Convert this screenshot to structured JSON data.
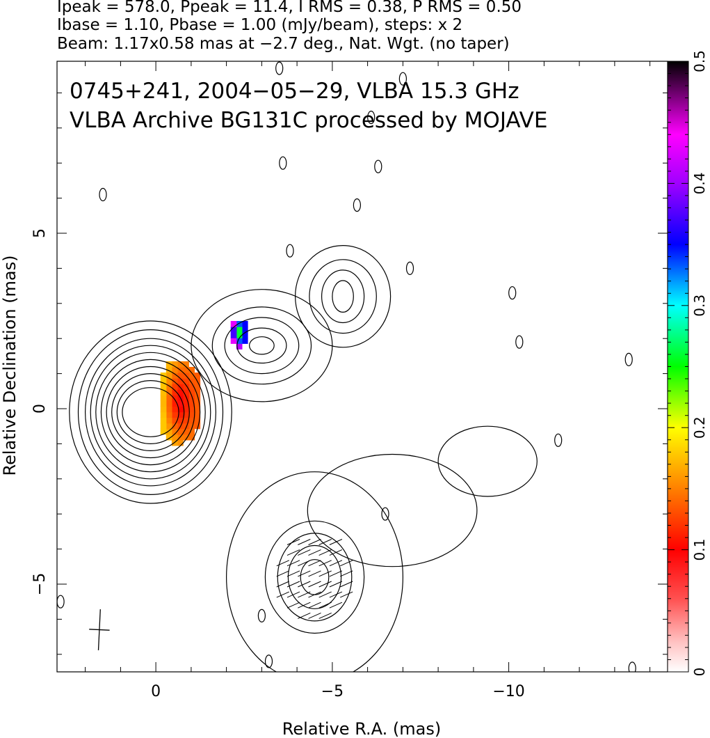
{
  "header": {
    "line1": "Ipeak = 578.0, Ppeak = 11.4, I RMS = 0.38, P RMS = 0.50",
    "line2": "Ibase = 1.10, Pbase = 1.00 (mJy/beam), steps: x 2",
    "line3": "Beam: 1.17x0.58 mas at −2.7 deg., Nat. Wgt. (no taper)"
  },
  "plot": {
    "title_line1": "0745+241, 2004−05−29, VLBA 15.3 GHz",
    "title_line2": "VLBA Archive BG131C processed by MOJAVE"
  },
  "chart_data": {
    "type": "contour",
    "xlabel": "Relative R.A. (mas)",
    "ylabel": "Relative Declination (mas)",
    "xlim": [
      2.8,
      -14.5
    ],
    "ylim": [
      -7.5,
      9.9
    ],
    "x_ticks": [
      0,
      -5,
      -10
    ],
    "x_tick_labels": [
      "0",
      "−5",
      "−10"
    ],
    "y_ticks": [
      -5,
      0,
      5
    ],
    "y_tick_labels": [
      "−5",
      "0",
      "5"
    ],
    "colorbar": {
      "range": [
        0,
        0.5
      ],
      "ticks": [
        0,
        0.1,
        0.2,
        0.3,
        0.4,
        0.5
      ],
      "tick_labels": [
        "0",
        "0.1",
        "0.2",
        "0.3",
        "0.4",
        "0.5"
      ],
      "colors": [
        "#ffffff",
        "#ff8080",
        "#ff0000",
        "#ff8000",
        "#ffff00",
        "#00ff00",
        "#00ffff",
        "#0000ff",
        "#ff00ff",
        "#000000"
      ]
    },
    "beam": {
      "major_mas": 1.17,
      "minor_mas": 0.58,
      "pa_deg": -2.7,
      "center": [
        1.6,
        -6.3
      ]
    },
    "contours": [
      {
        "name": "core",
        "center": [
          0.15,
          -0.1
        ],
        "rx": [
          0.8,
          0.95,
          1.1,
          1.25,
          1.4,
          1.55,
          1.7,
          1.85,
          2.05,
          2.3
        ],
        "ry": [
          0.7,
          0.9,
          1.1,
          1.3,
          1.5,
          1.7,
          1.9,
          2.1,
          2.35,
          2.6
        ]
      },
      {
        "name": "knot1",
        "center": [
          -3.0,
          1.8
        ],
        "rx": [
          0.35,
          0.7,
          1.05,
          1.4,
          2.0
        ],
        "ry": [
          0.25,
          0.5,
          0.8,
          1.1,
          1.6
        ]
      },
      {
        "name": "knot2",
        "center": [
          -5.3,
          3.2
        ],
        "rx": [
          0.3,
          0.6,
          0.95,
          1.35
        ],
        "ry": [
          0.45,
          0.75,
          1.05,
          1.45
        ]
      },
      {
        "name": "south-knot",
        "center": [
          -4.5,
          -4.8
        ],
        "rx": [
          0.4,
          0.75,
          1.05,
          1.4,
          2.5
        ],
        "ry": [
          0.5,
          0.9,
          1.25,
          1.6,
          3.0
        ]
      },
      {
        "name": "south-extension",
        "center": [
          -6.7,
          -2.9
        ],
        "rx": [
          2.4
        ],
        "ry": [
          1.6
        ]
      },
      {
        "name": "far-knot",
        "center": [
          -9.4,
          -1.5
        ],
        "rx": [
          1.4
        ],
        "ry": [
          1.0
        ]
      }
    ],
    "noise_contours": [
      [
        -3.5,
        9.7
      ],
      [
        -7.0,
        9.4
      ],
      [
        -6.1,
        8.3
      ],
      [
        -3.6,
        7.0
      ],
      [
        -6.3,
        6.9
      ],
      [
        1.5,
        6.1
      ],
      [
        -5.7,
        5.8
      ],
      [
        -3.8,
        4.5
      ],
      [
        -7.2,
        4.0
      ],
      [
        -10.1,
        3.3
      ],
      [
        -10.3,
        1.9
      ],
      [
        -13.4,
        1.4
      ],
      [
        -11.4,
        -0.9
      ],
      [
        -6.5,
        -3.0
      ],
      [
        -3.0,
        -5.9
      ],
      [
        2.7,
        -5.5
      ],
      [
        -3.2,
        -7.2
      ],
      [
        -13.5,
        -7.4
      ]
    ],
    "pol_regions": [
      {
        "name": "core-polarization",
        "x_range": [
          -1.25,
          -0.25
        ],
        "y_range": [
          -1.05,
          1.3
        ],
        "level_range": [
          0.09,
          0.18
        ]
      },
      {
        "name": "knot1-polarization",
        "x_range": [
          -2.6,
          -2.2
        ],
        "y_range": [
          1.7,
          2.5
        ],
        "level_range": [
          0.2,
          0.5
        ]
      }
    ]
  }
}
